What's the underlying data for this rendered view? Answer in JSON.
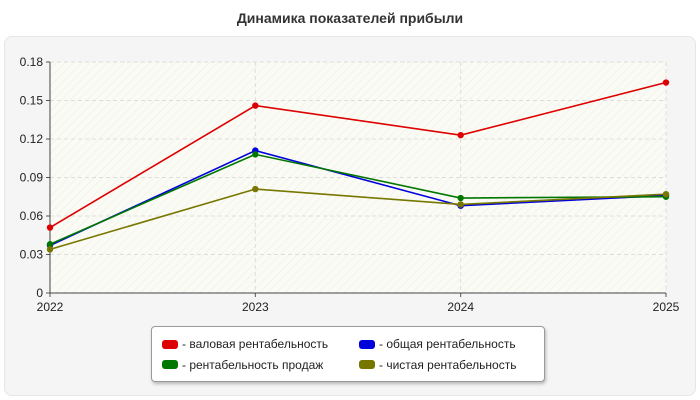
{
  "chart_data": {
    "type": "line",
    "title": "Динамика показателей прибыли",
    "xlabel": "",
    "ylabel": "",
    "categories": [
      "2022",
      "2023",
      "2024",
      "2025"
    ],
    "y_ticks": [
      "0",
      "0.03",
      "0.06",
      "0.09",
      "0.12",
      "0.15",
      "0.18"
    ],
    "ylim": [
      0,
      0.18
    ],
    "grid": true,
    "legend_position": "bottom",
    "series": [
      {
        "name": "- валовая рентабельность",
        "color": "#dd0000",
        "values": [
          0.051,
          0.146,
          0.123,
          0.164
        ]
      },
      {
        "name": "- общая рентабельность",
        "color": "#0000dd",
        "values": [
          0.037,
          0.111,
          0.068,
          0.076
        ]
      },
      {
        "name": "- рентабельность продаж",
        "color": "#007700",
        "values": [
          0.038,
          0.108,
          0.074,
          0.075
        ]
      },
      {
        "name": "- чистая рентабельность",
        "color": "#777700",
        "values": [
          0.034,
          0.081,
          0.069,
          0.077
        ]
      }
    ]
  }
}
